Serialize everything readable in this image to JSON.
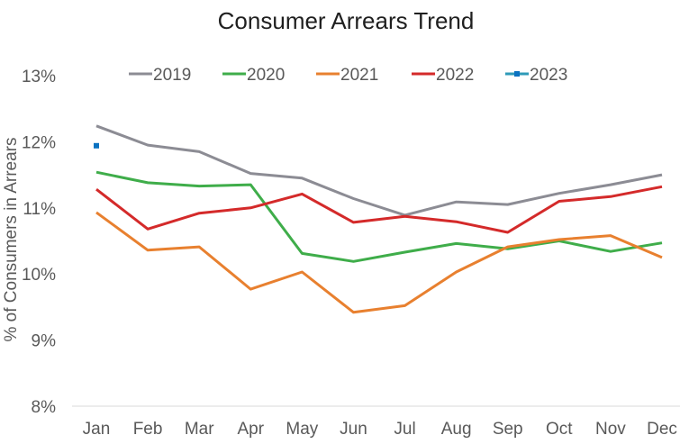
{
  "chart_data": {
    "type": "line",
    "title": "Consumer Arrears Trend",
    "xlabel": "",
    "ylabel": "% of Consumers in Arrears",
    "categories": [
      "Jan",
      "Feb",
      "Mar",
      "Apr",
      "May",
      "Jun",
      "Jul",
      "Aug",
      "Sep",
      "Oct",
      "Nov",
      "Dec"
    ],
    "ylim": [
      8,
      13
    ],
    "yticks": [
      8,
      9,
      10,
      11,
      12,
      13
    ],
    "ytick_labels": [
      "8%",
      "9%",
      "10%",
      "11%",
      "12%",
      "13%"
    ],
    "grid": false,
    "legend_position": "top",
    "series": [
      {
        "name": "2019",
        "color": "#8c8c94",
        "marker": false,
        "values": [
          12.24,
          11.95,
          11.85,
          11.52,
          11.45,
          11.14,
          10.89,
          11.09,
          11.05,
          11.22,
          11.35,
          11.5
        ]
      },
      {
        "name": "2020",
        "color": "#3fad4a",
        "marker": false,
        "values": [
          11.54,
          11.38,
          11.33,
          11.35,
          10.31,
          10.19,
          10.33,
          10.46,
          10.38,
          10.5,
          10.34,
          10.47
        ]
      },
      {
        "name": "2021",
        "color": "#e8802f",
        "marker": false,
        "values": [
          10.93,
          10.36,
          10.41,
          9.77,
          10.03,
          9.42,
          9.52,
          10.03,
          10.41,
          10.52,
          10.58,
          10.25
        ]
      },
      {
        "name": "2022",
        "color": "#d42a2a",
        "marker": false,
        "values": [
          11.28,
          10.68,
          10.92,
          11.0,
          11.21,
          10.78,
          10.87,
          10.79,
          10.63,
          11.1,
          11.17,
          11.32
        ]
      },
      {
        "name": "2023",
        "color": "#2e9ab8",
        "marker": true,
        "marker_color": "#0b72c1",
        "values": [
          11.94,
          null,
          null,
          null,
          null,
          null,
          null,
          null,
          null,
          null,
          null,
          null
        ]
      }
    ]
  }
}
